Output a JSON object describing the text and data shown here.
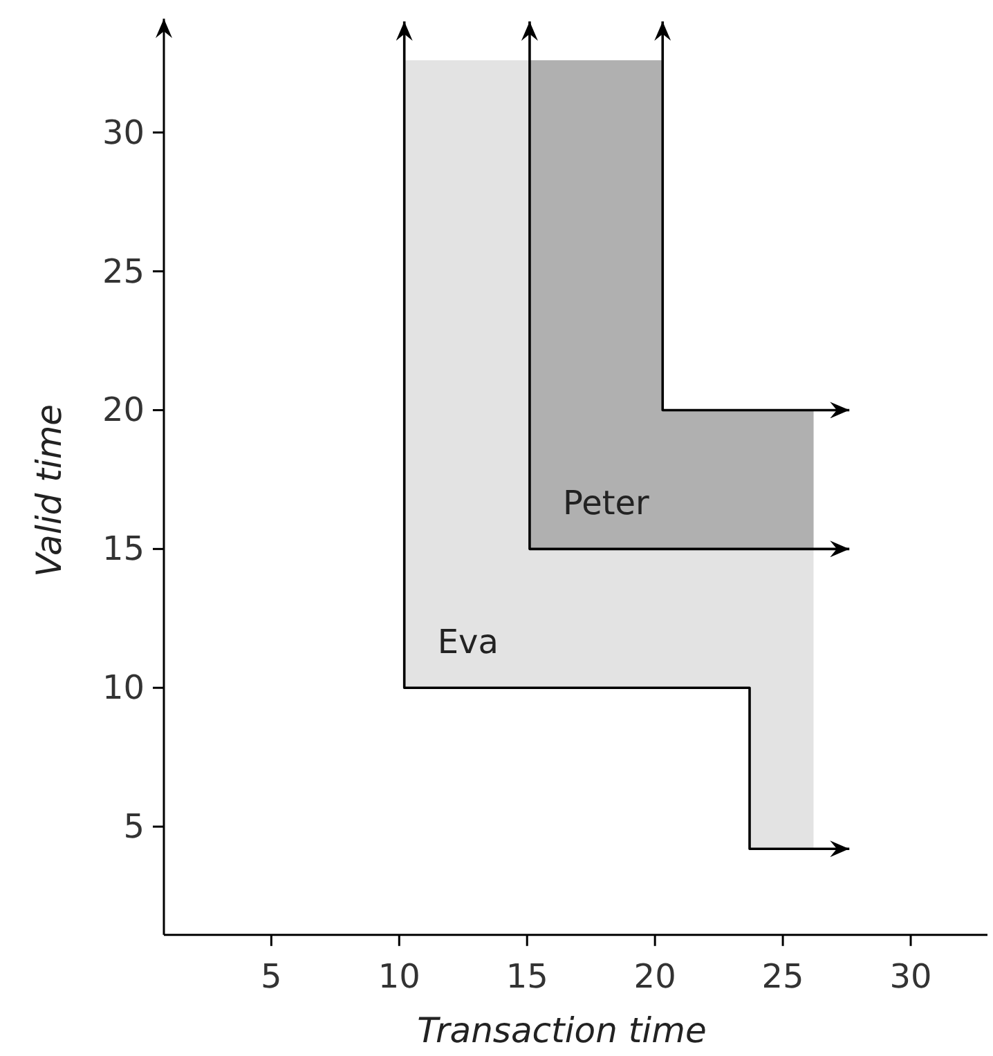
{
  "chart_data": {
    "type": "line",
    "xlabel": "Transaction time",
    "ylabel": "Valid time",
    "xlim": [
      0.8,
      33
    ],
    "ylim": [
      1.1,
      34.1
    ],
    "xticks": [
      5,
      10,
      15,
      20,
      25,
      30
    ],
    "yticks": [
      5,
      10,
      15,
      20,
      25,
      30
    ],
    "series": [
      {
        "name": "Eva",
        "color": "#000000",
        "x": [
          10.2,
          10.2,
          20.3,
          23.7,
          23.7,
          26.2,
          27.6
        ],
        "values": [
          34,
          10,
          10,
          10,
          4.2,
          4.2,
          4.2
        ],
        "lower": [
          null,
          10,
          10,
          10,
          4.2,
          4.2,
          null
        ],
        "upper": [
          null,
          32.6,
          20,
          20,
          20,
          20,
          null
        ]
      },
      {
        "name": "Peter",
        "color": "#000000",
        "x": [
          15.1,
          15.1,
          20.3,
          26.2,
          27.6
        ],
        "values": [
          34,
          15,
          15,
          15,
          15
        ],
        "lower": [
          null,
          15,
          15,
          15,
          null
        ],
        "upper": [
          null,
          32.6,
          20,
          20,
          null
        ]
      },
      {
        "color": "#000000",
        "x": [
          20.3,
          20.3,
          27.6
        ],
        "values": [
          34,
          20,
          20
        ]
      }
    ]
  }
}
